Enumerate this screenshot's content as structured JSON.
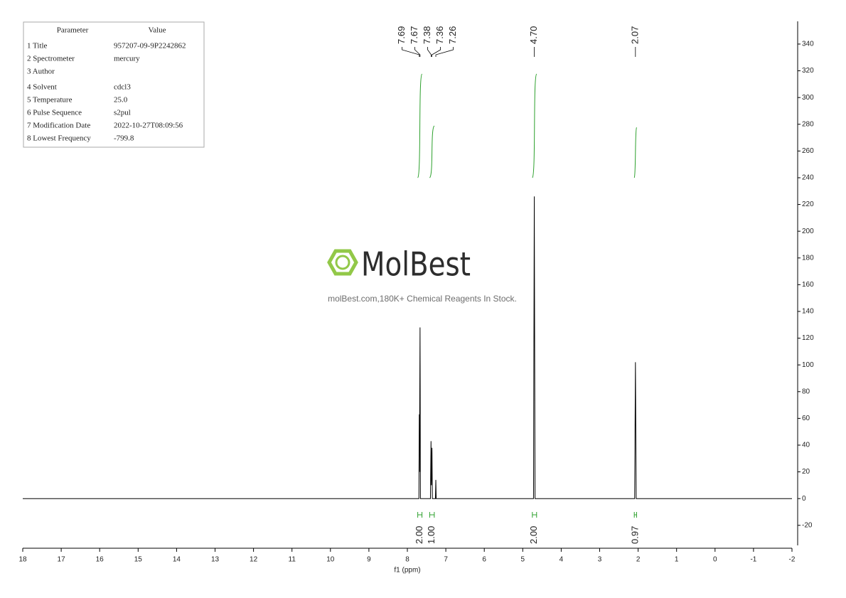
{
  "parameters": {
    "header": [
      "Parameter",
      "Value"
    ],
    "rows": [
      [
        "1 Title",
        "957207-09-9P2242862"
      ],
      [
        "2 Spectrometer",
        "mercury"
      ],
      [
        "3 Author"
      ],
      [
        "4 Solvent",
        "cdcl3"
      ],
      [
        "5 Temperature",
        "25.0"
      ],
      [
        "6 Pulse Sequence",
        "s2pul"
      ],
      [
        "7 Modification Date",
        "2022-10-27T08:09:56"
      ],
      [
        "8 Lowest Frequency",
        "-799.8"
      ]
    ]
  },
  "watermark": {
    "logo": "MolBest",
    "text": "molBest.com,180K+ Chemical Reagents In Stock."
  },
  "chart_data": {
    "type": "nmr",
    "x_label": "f1 (ppm)",
    "color": "#000000",
    "integral_color": "#2ca02c",
    "x": [
      18,
      7.75,
      7.7,
      7.69,
      7.685,
      7.67,
      7.66,
      7.4,
      7.385,
      7.375,
      7.36,
      7.35,
      7.27,
      7.26,
      7.25,
      4.72,
      4.7,
      4.68,
      2.09,
      2.07,
      2.05,
      -2
    ],
    "values": [
      0,
      0,
      0,
      63,
      20,
      128,
      0,
      0,
      43,
      10,
      38,
      0,
      0,
      14,
      0,
      0,
      226,
      0,
      0,
      102,
      0,
      0
    ],
    "peak_labels": [
      7.69,
      7.67,
      7.38,
      7.36,
      7.26,
      {
        "value": 4.7,
        "label": "4.70"
      },
      2.07
    ],
    "integrals": {
      "ranges": [
        [
          7.73,
          7.62
        ],
        [
          7.42,
          7.3
        ],
        [
          4.75,
          4.64
        ],
        [
          2.1,
          2.04
        ]
      ],
      "values": [
        2,
        1,
        2,
        0.97
      ],
      "value_labels": [
        "2.00",
        "1.00",
        "2.00",
        "0.97"
      ]
    },
    "xlim": [
      18,
      -2
    ],
    "xticks": [
      18,
      17,
      16,
      15,
      14,
      13,
      12,
      11,
      10,
      9,
      8,
      7,
      6,
      5,
      4,
      3,
      2,
      1,
      0,
      -1,
      -2
    ],
    "ylim": [
      -35,
      357
    ],
    "yticks": [
      -20,
      0,
      20,
      40,
      60,
      80,
      100,
      120,
      140,
      160,
      180,
      200,
      220,
      240,
      260,
      280,
      300,
      320,
      340
    ]
  }
}
